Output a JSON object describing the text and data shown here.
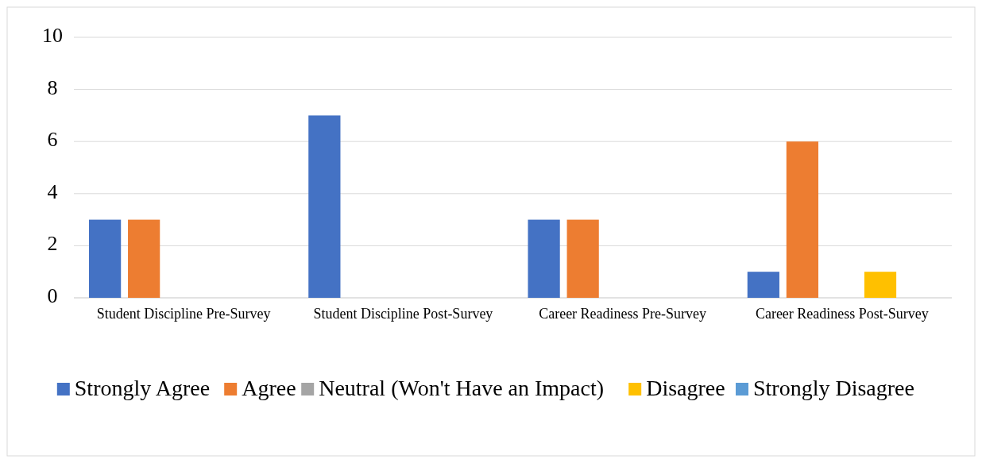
{
  "chart_data": {
    "type": "bar",
    "categories": [
      "Student Discipline Pre-Survey",
      "Student Discipline Post-Survey",
      "Career Readiness Pre-Survey",
      "Career Readiness Post-Survey"
    ],
    "series": [
      {
        "name": "Strongly Agree",
        "color": "#4472c4",
        "values": [
          3,
          7,
          3,
          1
        ]
      },
      {
        "name": "Agree",
        "color": "#ed7d31",
        "values": [
          3,
          0,
          3,
          6
        ]
      },
      {
        "name": "Neutral (Won't Have an Impact)",
        "color": "#a5a5a5",
        "values": [
          0,
          0,
          0,
          0
        ]
      },
      {
        "name": "Disagree",
        "color": "#ffc000",
        "values": [
          0,
          0,
          0,
          1
        ]
      },
      {
        "name": "Strongly Disagree",
        "color": "#5b9bd5",
        "values": [
          0,
          0,
          0,
          0
        ]
      }
    ],
    "ylim": [
      0,
      10
    ],
    "yticks": [
      0,
      2,
      4,
      6,
      8,
      10
    ],
    "grid": "y",
    "legend": "bottom"
  }
}
